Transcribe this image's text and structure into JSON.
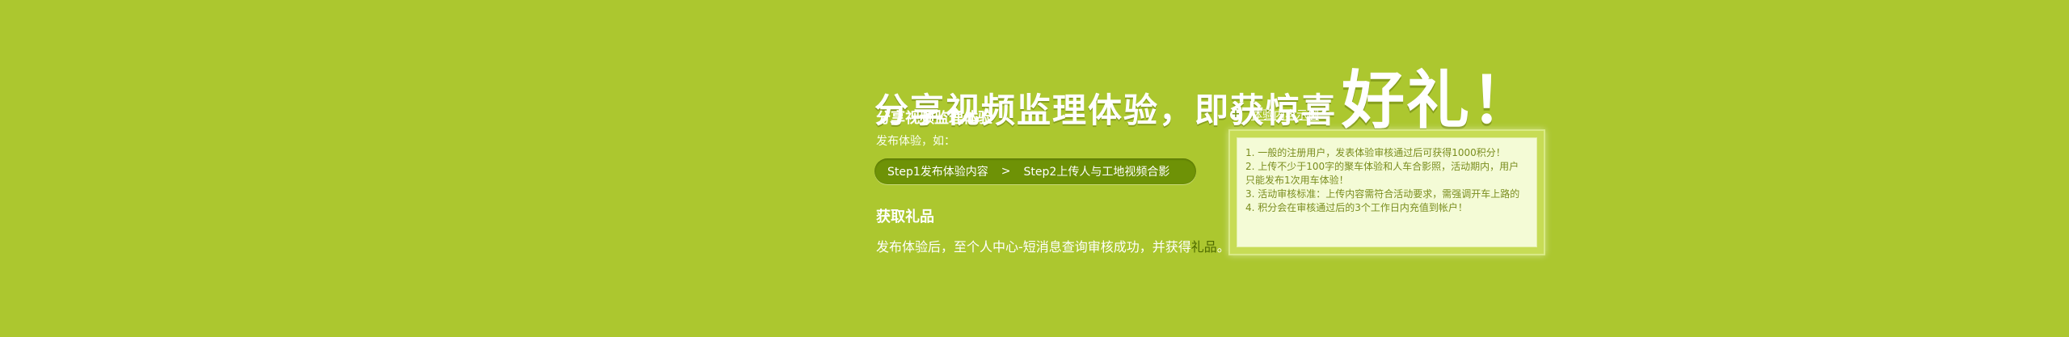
{
  "headline": {
    "main": "分享视频监理体验，即获惊喜",
    "big": "好礼！"
  },
  "section1": {
    "title": "分享视频监理体验",
    "subtitle": "发布体验，如：",
    "step1": "Step1发布体验内容",
    "separator": ">",
    "step2": "Step2上传人与工地视频合影"
  },
  "section2": {
    "title": "获取礼品",
    "desc_prefix": "发布体验后，至个人中心-短消息查询审核成功，并获得",
    "gift_link": "礼品",
    "desc_suffix": "。"
  },
  "sample": {
    "link": "体验内容示例",
    "rules": [
      "1. 一般的注册用户，发表体验审核通过后可获得1000积分！",
      "2. 上传不少于100字的聚车体验和人车合影照，活动期内，用户",
      "只能发布1次用车体验！",
      "3. 活动审核标准：上传内容需符合活动要求，需强调开车上路的",
      "4. 积分会在审核通过后的3个工作日内充值到帐户！"
    ]
  },
  "colors": {
    "background": "#acc72f",
    "pill": "#6e9206",
    "gift_link": "#4e6a00",
    "box_text": "#7a8d1e"
  }
}
